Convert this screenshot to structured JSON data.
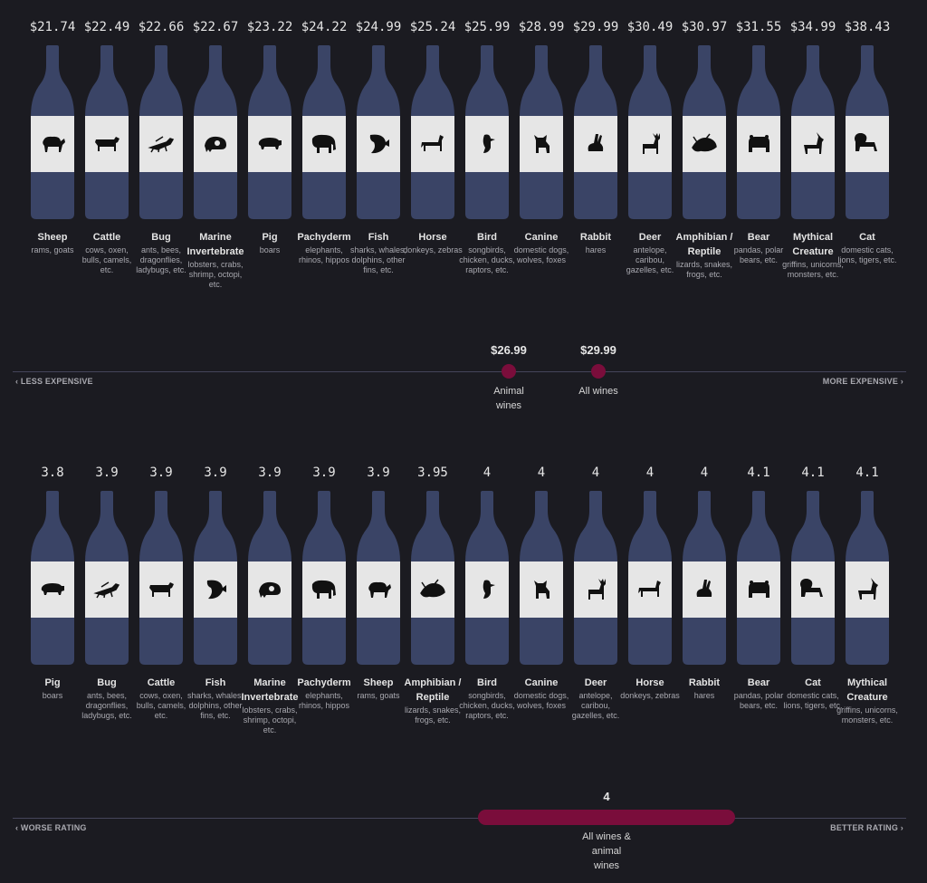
{
  "colors": {
    "bottle": "#3a4466",
    "label": "#e6e6e6",
    "marker": "#7a0d3b",
    "background": "#1b1b21"
  },
  "chart_data": [
    {
      "type": "bar",
      "categories": [
        "Sheep",
        "Cattle",
        "Bug",
        "Marine Invertebrate",
        "Pig",
        "Pachyderm",
        "Fish",
        "Horse",
        "Bird",
        "Canine",
        "Rabbit",
        "Deer",
        "Amphibian / Reptile",
        "Bear",
        "Mythical Creature",
        "Cat"
      ],
      "values": [
        21.74,
        22.49,
        22.66,
        22.67,
        23.22,
        24.22,
        24.99,
        25.24,
        25.99,
        28.99,
        29.99,
        30.49,
        30.97,
        31.55,
        34.99,
        38.43
      ],
      "value_labels": [
        "$21.74",
        "$22.49",
        "$22.66",
        "$22.67",
        "$23.22",
        "$24.22",
        "$24.99",
        "$25.24",
        "$25.99",
        "$28.99",
        "$29.99",
        "$30.49",
        "$30.97",
        "$31.55",
        "$34.99",
        "$38.43"
      ],
      "descriptions": [
        "rams, goats",
        "cows, oxen, bulls, camels, etc.",
        "ants, bees, dragonflies, ladybugs, etc.",
        "lobsters, crabs, shrimp, octopi, etc.",
        "boars",
        "elephants, rhinos, hippos",
        "sharks, whales, dolphins, other fins, etc.",
        "donkeys, zebras",
        "songbirds, chicken, ducks, raptors, etc.",
        "domestic dogs, wolves, foxes",
        "hares",
        "antelope, caribou, gazelles, etc.",
        "lizards, snakes, frogs, etc.",
        "pandas, polar bears, etc.",
        "griffins, unicorns, monsters, etc.",
        "domestic cats, lions, tigers, etc."
      ],
      "icons": [
        "sheep",
        "cattle",
        "bug",
        "marine-invertebrate",
        "pig",
        "pachyderm",
        "fish",
        "horse",
        "bird",
        "canine",
        "rabbit",
        "deer",
        "amphibian-reptile",
        "bear",
        "mythical-creature",
        "cat"
      ],
      "axis": {
        "left_label": "LESS EXPENSIVE",
        "right_label": "MORE EXPENSIVE"
      },
      "markers": [
        {
          "value_label": "$26.99",
          "label": "Animal wines"
        },
        {
          "value_label": "$29.99",
          "label": "All wines"
        }
      ]
    },
    {
      "type": "bar",
      "categories": [
        "Pig",
        "Bug",
        "Cattle",
        "Fish",
        "Marine Invertebrate",
        "Pachyderm",
        "Sheep",
        "Amphibian / Reptile",
        "Bird",
        "Canine",
        "Deer",
        "Horse",
        "Rabbit",
        "Bear",
        "Cat",
        "Mythical Creature"
      ],
      "values": [
        3.8,
        3.9,
        3.9,
        3.9,
        3.9,
        3.9,
        3.9,
        3.95,
        4,
        4,
        4,
        4,
        4,
        4.1,
        4.1,
        4.1
      ],
      "value_labels": [
        "3.8",
        "3.9",
        "3.9",
        "3.9",
        "3.9",
        "3.9",
        "3.9",
        "3.95",
        "4",
        "4",
        "4",
        "4",
        "4",
        "4.1",
        "4.1",
        "4.1"
      ],
      "descriptions": [
        "boars",
        "ants, bees, dragonflies, ladybugs, etc.",
        "cows, oxen, bulls, camels, etc.",
        "sharks, whales, dolphins, other fins, etc.",
        "lobsters, crabs, shrimp, octopi, etc.",
        "elephants, rhinos, hippos",
        "rams, goats",
        "lizards, snakes, frogs, etc.",
        "songbirds, chicken, ducks, raptors, etc.",
        "domestic dogs, wolves, foxes",
        "antelope, caribou, gazelles, etc.",
        "donkeys, zebras",
        "hares",
        "pandas, polar bears, etc.",
        "domestic cats, lions, tigers, etc.",
        "griffins, unicorns, monsters, etc."
      ],
      "icons": [
        "pig",
        "bug",
        "cattle",
        "fish",
        "marine-invertebrate",
        "pachyderm",
        "sheep",
        "amphibian-reptile",
        "bird",
        "canine",
        "deer",
        "horse",
        "rabbit",
        "bear",
        "cat",
        "mythical-creature"
      ],
      "axis": {
        "left_label": "WORSE RATING",
        "right_label": "BETTER RATING"
      },
      "markers": [
        {
          "value_label": "4",
          "label": "All wines & animal wines"
        }
      ]
    }
  ]
}
